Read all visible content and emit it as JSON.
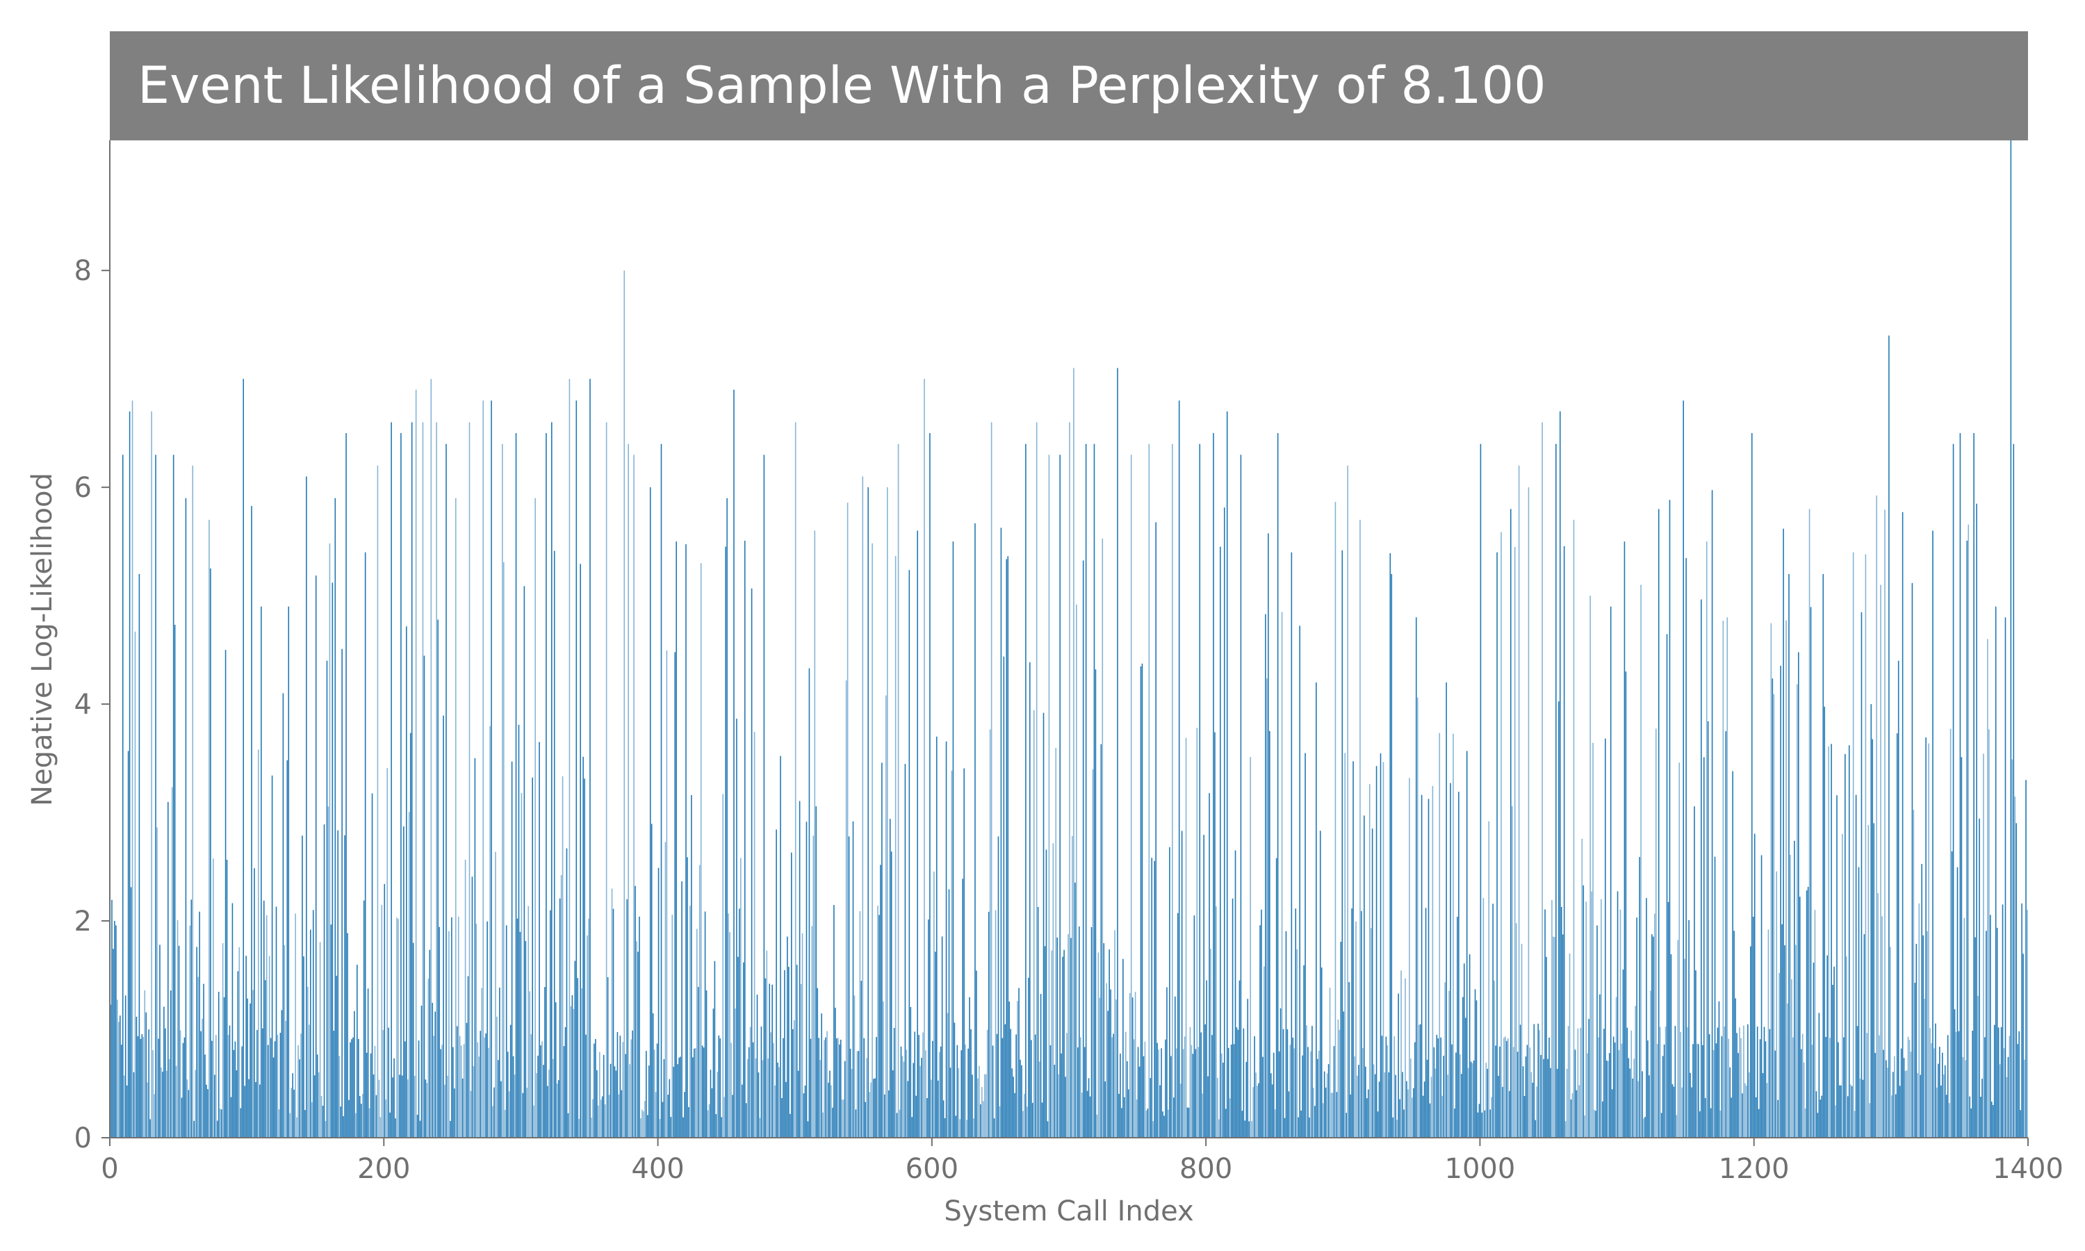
{
  "chart_data": {
    "type": "bar",
    "title": "Event Likelihood of a Sample With a Perplexity of 8.100",
    "xlabel": "System Call Index",
    "ylabel": "Negative Log-Likelihood",
    "xlim": [
      0,
      1400
    ],
    "ylim": [
      0,
      9.2
    ],
    "xticks": [
      "0",
      "200",
      "400",
      "600",
      "800",
      "1000",
      "1200",
      "1400"
    ],
    "yticks": [
      "0",
      "2",
      "4",
      "6",
      "8"
    ],
    "grid": false,
    "legend": "none",
    "n_points": 1400,
    "colors": {
      "bar": "#1f77b4",
      "title_background": "#808080",
      "title_text": "#ffffff",
      "axis": "#707070"
    },
    "peaks": [
      {
        "x": 3,
        "y": 2.0
      },
      {
        "x": 9,
        "y": 6.3
      },
      {
        "x": 14,
        "y": 6.7
      },
      {
        "x": 16,
        "y": 6.8
      },
      {
        "x": 21,
        "y": 5.2
      },
      {
        "x": 30,
        "y": 6.7
      },
      {
        "x": 33,
        "y": 6.3
      },
      {
        "x": 46,
        "y": 6.3
      },
      {
        "x": 55,
        "y": 5.9
      },
      {
        "x": 60,
        "y": 6.2
      },
      {
        "x": 72,
        "y": 5.7
      },
      {
        "x": 84,
        "y": 4.5
      },
      {
        "x": 97,
        "y": 7.0
      },
      {
        "x": 110,
        "y": 4.9
      },
      {
        "x": 126,
        "y": 4.1
      },
      {
        "x": 130,
        "y": 4.9
      },
      {
        "x": 143,
        "y": 6.1
      },
      {
        "x": 158,
        "y": 4.4
      },
      {
        "x": 164,
        "y": 5.9
      },
      {
        "x": 172,
        "y": 6.5
      },
      {
        "x": 186,
        "y": 5.4
      },
      {
        "x": 195,
        "y": 6.2
      },
      {
        "x": 205,
        "y": 6.6
      },
      {
        "x": 212,
        "y": 6.5
      },
      {
        "x": 220,
        "y": 6.6
      },
      {
        "x": 223,
        "y": 6.9
      },
      {
        "x": 228,
        "y": 6.6
      },
      {
        "x": 234,
        "y": 7.0
      },
      {
        "x": 238,
        "y": 6.6
      },
      {
        "x": 245,
        "y": 6.4
      },
      {
        "x": 252,
        "y": 5.9
      },
      {
        "x": 262,
        "y": 6.6
      },
      {
        "x": 272,
        "y": 6.8
      },
      {
        "x": 278,
        "y": 6.8
      },
      {
        "x": 286,
        "y": 6.4
      },
      {
        "x": 296,
        "y": 6.5
      },
      {
        "x": 310,
        "y": 5.9
      },
      {
        "x": 318,
        "y": 6.5
      },
      {
        "x": 322,
        "y": 6.6
      },
      {
        "x": 335,
        "y": 7.0
      },
      {
        "x": 340,
        "y": 6.8
      },
      {
        "x": 350,
        "y": 7.0
      },
      {
        "x": 362,
        "y": 6.6
      },
      {
        "x": 375,
        "y": 8.0
      },
      {
        "x": 378,
        "y": 6.4
      },
      {
        "x": 382,
        "y": 6.3
      },
      {
        "x": 394,
        "y": 6.0
      },
      {
        "x": 402,
        "y": 6.4
      },
      {
        "x": 413,
        "y": 5.5
      },
      {
        "x": 431,
        "y": 5.3
      },
      {
        "x": 455,
        "y": 6.9
      },
      {
        "x": 477,
        "y": 6.3
      },
      {
        "x": 500,
        "y": 6.6
      },
      {
        "x": 514,
        "y": 5.6
      },
      {
        "x": 549,
        "y": 6.1
      },
      {
        "x": 553,
        "y": 6.0
      },
      {
        "x": 567,
        "y": 6.0
      },
      {
        "x": 575,
        "y": 6.4
      },
      {
        "x": 589,
        "y": 5.6
      },
      {
        "x": 594,
        "y": 7.0
      },
      {
        "x": 598,
        "y": 6.5
      },
      {
        "x": 615,
        "y": 5.5
      },
      {
        "x": 643,
        "y": 6.6
      },
      {
        "x": 668,
        "y": 6.4
      },
      {
        "x": 676,
        "y": 6.6
      },
      {
        "x": 685,
        "y": 6.3
      },
      {
        "x": 693,
        "y": 6.3
      },
      {
        "x": 700,
        "y": 6.6
      },
      {
        "x": 703,
        "y": 7.1
      },
      {
        "x": 712,
        "y": 6.4
      },
      {
        "x": 718,
        "y": 6.4
      },
      {
        "x": 735,
        "y": 7.1
      },
      {
        "x": 745,
        "y": 6.3
      },
      {
        "x": 758,
        "y": 6.4
      },
      {
        "x": 775,
        "y": 6.4
      },
      {
        "x": 780,
        "y": 6.8
      },
      {
        "x": 795,
        "y": 6.4
      },
      {
        "x": 805,
        "y": 6.5
      },
      {
        "x": 815,
        "y": 6.7
      },
      {
        "x": 825,
        "y": 6.3
      },
      {
        "x": 852,
        "y": 6.5
      },
      {
        "x": 862,
        "y": 5.4
      },
      {
        "x": 880,
        "y": 4.2
      },
      {
        "x": 903,
        "y": 6.2
      },
      {
        "x": 912,
        "y": 5.7
      },
      {
        "x": 935,
        "y": 5.2
      },
      {
        "x": 953,
        "y": 4.8
      },
      {
        "x": 975,
        "y": 4.2
      },
      {
        "x": 1000,
        "y": 6.4
      },
      {
        "x": 1012,
        "y": 5.4
      },
      {
        "x": 1022,
        "y": 5.8
      },
      {
        "x": 1028,
        "y": 6.2
      },
      {
        "x": 1035,
        "y": 6.0
      },
      {
        "x": 1045,
        "y": 6.6
      },
      {
        "x": 1055,
        "y": 6.4
      },
      {
        "x": 1058,
        "y": 6.7
      },
      {
        "x": 1068,
        "y": 5.7
      },
      {
        "x": 1080,
        "y": 5.0
      },
      {
        "x": 1095,
        "y": 4.9
      },
      {
        "x": 1105,
        "y": 5.5
      },
      {
        "x": 1117,
        "y": 5.1
      },
      {
        "x": 1130,
        "y": 5.8
      },
      {
        "x": 1148,
        "y": 6.8
      },
      {
        "x": 1165,
        "y": 5.5
      },
      {
        "x": 1180,
        "y": 4.8
      },
      {
        "x": 1198,
        "y": 6.5
      },
      {
        "x": 1225,
        "y": 5.2
      },
      {
        "x": 1240,
        "y": 5.8
      },
      {
        "x": 1250,
        "y": 5.2
      },
      {
        "x": 1272,
        "y": 5.4
      },
      {
        "x": 1285,
        "y": 4.0
      },
      {
        "x": 1292,
        "y": 5.1
      },
      {
        "x": 1298,
        "y": 7.4
      },
      {
        "x": 1305,
        "y": 4.4
      },
      {
        "x": 1330,
        "y": 5.6
      },
      {
        "x": 1345,
        "y": 6.4
      },
      {
        "x": 1350,
        "y": 6.5
      },
      {
        "x": 1360,
        "y": 6.5
      },
      {
        "x": 1370,
        "y": 4.6
      },
      {
        "x": 1376,
        "y": 4.9
      },
      {
        "x": 1383,
        "y": 4.8
      },
      {
        "x": 1387,
        "y": 9.2
      },
      {
        "x": 1389,
        "y": 6.4
      },
      {
        "x": 1398,
        "y": 3.3
      }
    ]
  }
}
